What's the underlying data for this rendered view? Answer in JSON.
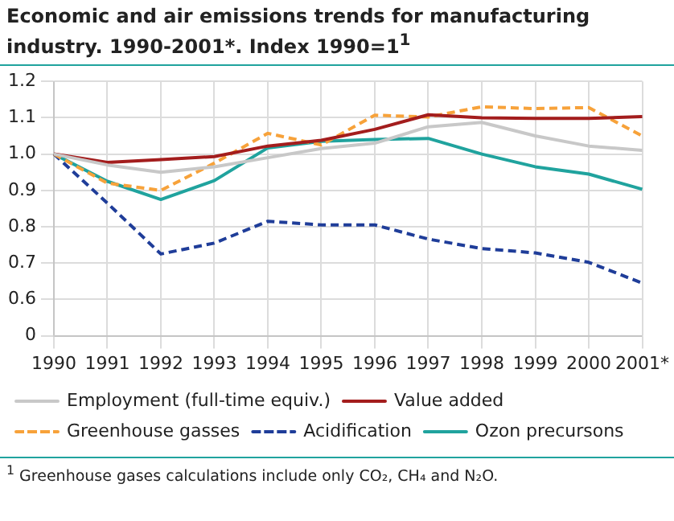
{
  "chart_data": {
    "type": "line",
    "title": "Economic and air emissions trends for manufacturing industry. 1990-2001*. Index 1990=1$^{1}$",
    "categories": [
      "1990",
      "1991",
      "1992",
      "1993",
      "1994",
      "1995",
      "1996",
      "1997",
      "1998",
      "1999",
      "2000",
      "2001*"
    ],
    "series": [
      {
        "name": "Employment (full-time equiv.)",
        "color": "#c8c8c8",
        "line_style": "solid",
        "values": [
          1.0,
          0.97,
          0.95,
          0.965,
          0.99,
          1.015,
          1.03,
          1.075,
          1.087,
          1.05,
          1.022,
          1.01
        ]
      },
      {
        "name": "Value added",
        "color": "#a31d1d",
        "line_style": "solid",
        "values": [
          1.0,
          0.977,
          0.985,
          0.993,
          1.022,
          1.038,
          1.068,
          1.108,
          1.1,
          1.098,
          1.098,
          1.103
        ]
      },
      {
        "name": "Greenhouse gasses",
        "color": "#f7a23a",
        "line_style": "dashed",
        "values": [
          1.0,
          0.92,
          0.9,
          0.975,
          1.057,
          1.025,
          1.107,
          1.102,
          1.13,
          1.125,
          1.128,
          1.05
        ]
      },
      {
        "name": "Acidification",
        "color": "#1f3d99",
        "line_style": "dashed",
        "values": [
          1.0,
          0.865,
          0.725,
          0.755,
          0.815,
          0.805,
          0.805,
          0.766,
          0.74,
          0.728,
          0.702,
          0.645
        ]
      },
      {
        "name": "Ozon precursons",
        "color": "#20a39e",
        "line_style": "solid",
        "values": [
          1.0,
          0.925,
          0.875,
          0.927,
          1.017,
          1.035,
          1.04,
          1.043,
          1.0,
          0.965,
          0.945,
          0.903
        ]
      }
    ],
    "ylim": [
      0.5,
      1.2
    ],
    "yticks": [
      {
        "value": 0.5,
        "label": "0"
      },
      0.6,
      0.7,
      0.8,
      0.9,
      {
        "value": 1,
        "label": "1.0"
      },
      1.1,
      1.2
    ],
    "grid": true,
    "legend": "bottom",
    "marker": "none",
    "annotations": [
      "$^{1}$ Greenhouse gases calculations include only CO₂, CH₄ and N₂O."
    ]
  }
}
